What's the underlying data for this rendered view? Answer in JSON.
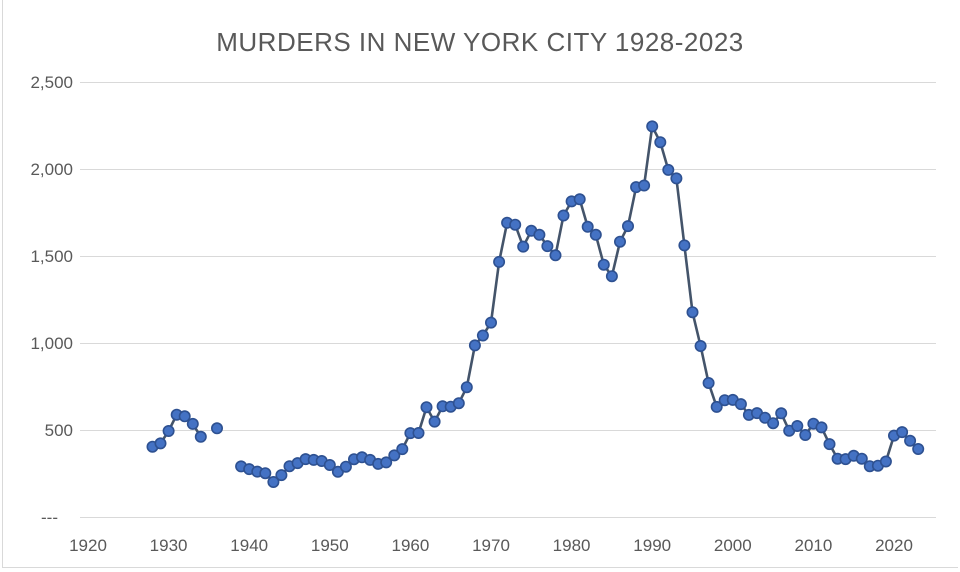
{
  "title": "MURDERS IN NEW YORK CITY 1928-2023",
  "colors": {
    "background": "#ffffff",
    "marker_fill": "#4472C4",
    "marker_stroke": "#2E5191",
    "line": "#44546A",
    "grid": "#D9D9D9",
    "border": "#D9D9D9",
    "text": "#595959"
  },
  "chart_data": {
    "type": "line",
    "title": "MURDERS IN NEW YORK CITY 1928-2023",
    "xlabel": "",
    "ylabel": "",
    "legend": false,
    "grid": true,
    "marker": "circle",
    "xlim": [
      1920,
      2025
    ],
    "ylim": [
      0,
      2500
    ],
    "x_ticks": [
      {
        "value": 1920,
        "label": "1920"
      },
      {
        "value": 1930,
        "label": "1930"
      },
      {
        "value": 1940,
        "label": "1940"
      },
      {
        "value": 1950,
        "label": "1950"
      },
      {
        "value": 1960,
        "label": "1960"
      },
      {
        "value": 1970,
        "label": "1970"
      },
      {
        "value": 1980,
        "label": "1980"
      },
      {
        "value": 1990,
        "label": "1990"
      },
      {
        "value": 2000,
        "label": "2000"
      },
      {
        "value": 2010,
        "label": "2010"
      },
      {
        "value": 2020,
        "label": "2020"
      }
    ],
    "y_ticks": [
      {
        "value": 0,
        "label": "---"
      },
      {
        "value": 500,
        "label": "500"
      },
      {
        "value": 1000,
        "label": "1,000"
      },
      {
        "value": 1500,
        "label": "1,500"
      },
      {
        "value": 2000,
        "label": "2,000"
      },
      {
        "value": 2500,
        "label": "2,500"
      }
    ],
    "missing_years": [
      1935,
      1937,
      1938
    ],
    "points": [
      [
        1928,
        404
      ],
      [
        1929,
        423
      ],
      [
        1930,
        494
      ],
      [
        1931,
        588
      ],
      [
        1932,
        579
      ],
      [
        1933,
        535
      ],
      [
        1934,
        461
      ],
      [
        1935,
        null
      ],
      [
        1936,
        510
      ],
      [
        1937,
        null
      ],
      [
        1938,
        null
      ],
      [
        1939,
        291
      ],
      [
        1940,
        275
      ],
      [
        1941,
        261
      ],
      [
        1942,
        252
      ],
      [
        1943,
        201
      ],
      [
        1944,
        241
      ],
      [
        1945,
        292
      ],
      [
        1946,
        310
      ],
      [
        1947,
        333
      ],
      [
        1948,
        328
      ],
      [
        1949,
        322
      ],
      [
        1950,
        299
      ],
      [
        1951,
        260
      ],
      [
        1952,
        289
      ],
      [
        1953,
        332
      ],
      [
        1954,
        343
      ],
      [
        1955,
        328
      ],
      [
        1956,
        305
      ],
      [
        1957,
        314
      ],
      [
        1958,
        354
      ],
      [
        1959,
        390
      ],
      [
        1960,
        482
      ],
      [
        1961,
        483
      ],
      [
        1962,
        631
      ],
      [
        1963,
        548
      ],
      [
        1964,
        636
      ],
      [
        1965,
        634
      ],
      [
        1966,
        654
      ],
      [
        1967,
        746
      ],
      [
        1968,
        986
      ],
      [
        1969,
        1043
      ],
      [
        1970,
        1117
      ],
      [
        1971,
        1466
      ],
      [
        1972,
        1691
      ],
      [
        1973,
        1680
      ],
      [
        1974,
        1554
      ],
      [
        1975,
        1645
      ],
      [
        1976,
        1622
      ],
      [
        1977,
        1557
      ],
      [
        1978,
        1504
      ],
      [
        1979,
        1733
      ],
      [
        1980,
        1814
      ],
      [
        1981,
        1826
      ],
      [
        1982,
        1668
      ],
      [
        1983,
        1622
      ],
      [
        1984,
        1450
      ],
      [
        1985,
        1384
      ],
      [
        1986,
        1582
      ],
      [
        1987,
        1672
      ],
      [
        1988,
        1896
      ],
      [
        1989,
        1905
      ],
      [
        1990,
        2245
      ],
      [
        1991,
        2154
      ],
      [
        1992,
        1995
      ],
      [
        1993,
        1946
      ],
      [
        1994,
        1561
      ],
      [
        1995,
        1177
      ],
      [
        1996,
        983
      ],
      [
        1997,
        770
      ],
      [
        1998,
        633
      ],
      [
        1999,
        671
      ],
      [
        2000,
        673
      ],
      [
        2001,
        649
      ],
      [
        2002,
        587
      ],
      [
        2003,
        597
      ],
      [
        2004,
        570
      ],
      [
        2005,
        539
      ],
      [
        2006,
        596
      ],
      [
        2007,
        496
      ],
      [
        2008,
        523
      ],
      [
        2009,
        471
      ],
      [
        2010,
        536
      ],
      [
        2011,
        515
      ],
      [
        2012,
        419
      ],
      [
        2013,
        335
      ],
      [
        2014,
        333
      ],
      [
        2015,
        352
      ],
      [
        2016,
        335
      ],
      [
        2017,
        292
      ],
      [
        2018,
        295
      ],
      [
        2019,
        319
      ],
      [
        2020,
        468
      ],
      [
        2021,
        488
      ],
      [
        2022,
        438
      ],
      [
        2023,
        391
      ]
    ]
  }
}
